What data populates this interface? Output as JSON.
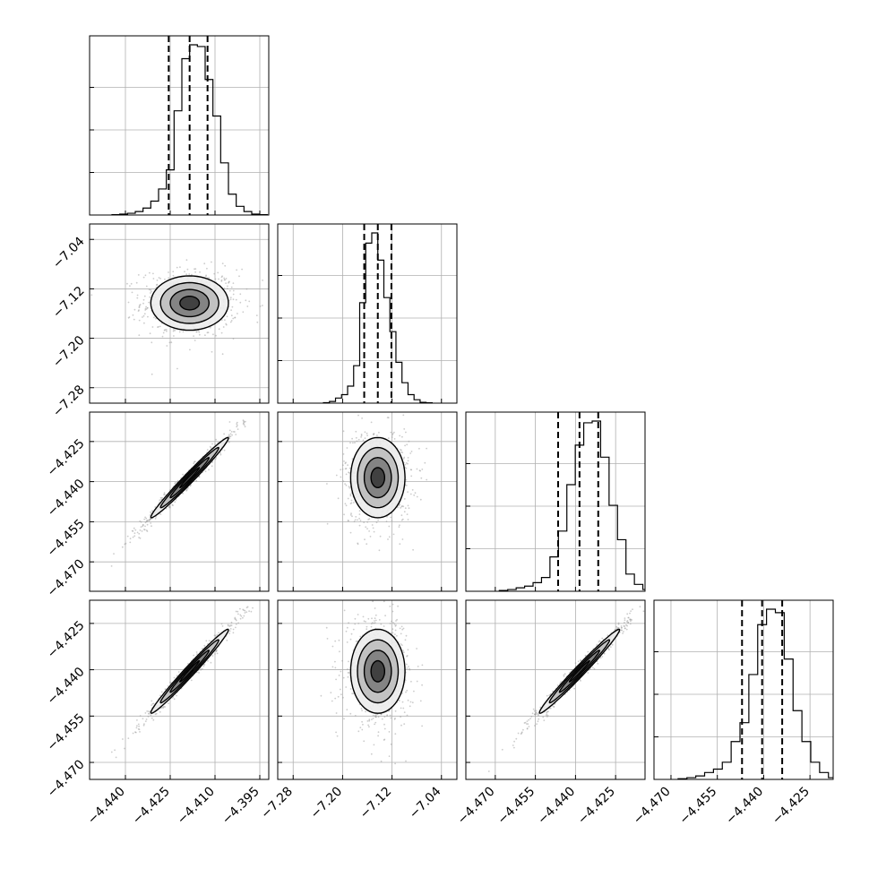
{
  "chart_data": {
    "type": "corner",
    "title": "",
    "n_params": 4,
    "grid": true,
    "colors": {
      "line": "#000000",
      "grid": "#b0b0b0",
      "scatter": "#9a9a9a"
    },
    "axes": [
      {
        "index": 0,
        "range": [
          -4.452,
          -4.392
        ],
        "ticks": [
          -4.44,
          -4.425,
          -4.41,
          -4.395
        ],
        "tick_labels": [
          "−4.440",
          "−4.425",
          "−4.410",
          "−4.395"
        ],
        "median": -4.4185,
        "q16": -4.4255,
        "q84": -4.4125,
        "sigma": 0.0065
      },
      {
        "index": 1,
        "range": [
          -7.305,
          -7.015
        ],
        "ticks": [
          -7.28,
          -7.2,
          -7.12,
          -7.04
        ],
        "tick_labels": [
          "−7.28",
          "−7.20",
          "−7.12",
          "−7.04"
        ],
        "median": -7.143,
        "q16": -7.165,
        "q84": -7.121,
        "sigma": 0.022
      },
      {
        "index": 2,
        "range": [
          -4.481,
          -4.414
        ],
        "ticks": [
          -4.47,
          -4.455,
          -4.44,
          -4.425
        ],
        "tick_labels": [
          "−4.470",
          "−4.455",
          "−4.440",
          "−4.425"
        ],
        "median": -4.4385,
        "q16": -4.4465,
        "q84": -4.4315,
        "sigma": 0.0075
      },
      {
        "index": 3,
        "range": [
          -4.4755,
          -4.4175
        ],
        "ticks": [
          -4.47,
          -4.455,
          -4.44,
          -4.425
        ],
        "tick_labels": [
          "−4.470",
          "−4.455",
          "−4.440",
          "−4.425"
        ],
        "median": -4.4405,
        "q16": -4.447,
        "q84": -4.434,
        "sigma": 0.0068
      }
    ],
    "histograms": [
      {
        "param": 0,
        "values": [
          0.002,
          0.005,
          0.01,
          0.02,
          0.04,
          0.08,
          0.15,
          0.26,
          0.6,
          0.9,
          0.98,
          0.97,
          0.78,
          0.57,
          0.3,
          0.12,
          0.05,
          0.02,
          0.005,
          0.002
        ]
      },
      {
        "param": 1,
        "values": [
          0.003,
          0.01,
          0.03,
          0.05,
          0.1,
          0.22,
          0.59,
          0.94,
          1.0,
          0.84,
          0.62,
          0.42,
          0.24,
          0.12,
          0.05,
          0.02,
          0.005,
          0.002
        ]
      },
      {
        "param": 2,
        "values": [
          0.005,
          0.01,
          0.02,
          0.03,
          0.05,
          0.08,
          0.2,
          0.35,
          0.62,
          0.85,
          0.98,
          0.99,
          0.78,
          0.5,
          0.3,
          0.1,
          0.04,
          0.01,
          0.003
        ]
      },
      {
        "param": 3,
        "values": [
          0.004,
          0.01,
          0.02,
          0.04,
          0.06,
          0.1,
          0.22,
          0.33,
          0.61,
          0.9,
          0.99,
          0.97,
          0.7,
          0.4,
          0.22,
          0.1,
          0.04,
          0.01,
          0.003
        ]
      }
    ],
    "pairs": [
      {
        "x": 0,
        "y": 1,
        "rho": 0.0
      },
      {
        "x": 0,
        "y": 2,
        "rho": 0.985
      },
      {
        "x": 1,
        "y": 2,
        "rho": 0.0
      },
      {
        "x": 0,
        "y": 3,
        "rho": 0.985
      },
      {
        "x": 1,
        "y": 3,
        "rho": 0.0
      },
      {
        "x": 2,
        "y": 3,
        "rho": 0.985
      }
    ],
    "contour_levels_sigma": [
      0.5,
      1.0,
      1.5,
      2.0
    ]
  }
}
